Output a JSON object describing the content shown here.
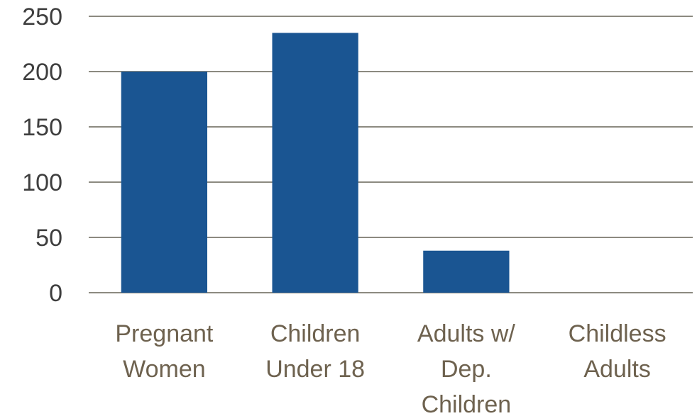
{
  "chart_data": {
    "type": "bar",
    "title": "",
    "xlabel": "",
    "ylabel": "",
    "categories": [
      [
        "Pregnant",
        "Women"
      ],
      [
        "Children",
        "Under 18"
      ],
      [
        "Adults w/",
        "Dep.",
        "Children"
      ],
      [
        "Childless",
        "Adults"
      ]
    ],
    "values": [
      200,
      235,
      38,
      0
    ],
    "ylim": [
      0,
      250
    ],
    "yticks": [
      "0",
      "50",
      "100",
      "150",
      "200",
      "250"
    ],
    "grid": true,
    "legend": "none",
    "bar_color": "#1a5592",
    "grid_color": "#8c8a80",
    "category_label_color": "#6e624f",
    "tick_label_color": "#3e3e3e"
  }
}
